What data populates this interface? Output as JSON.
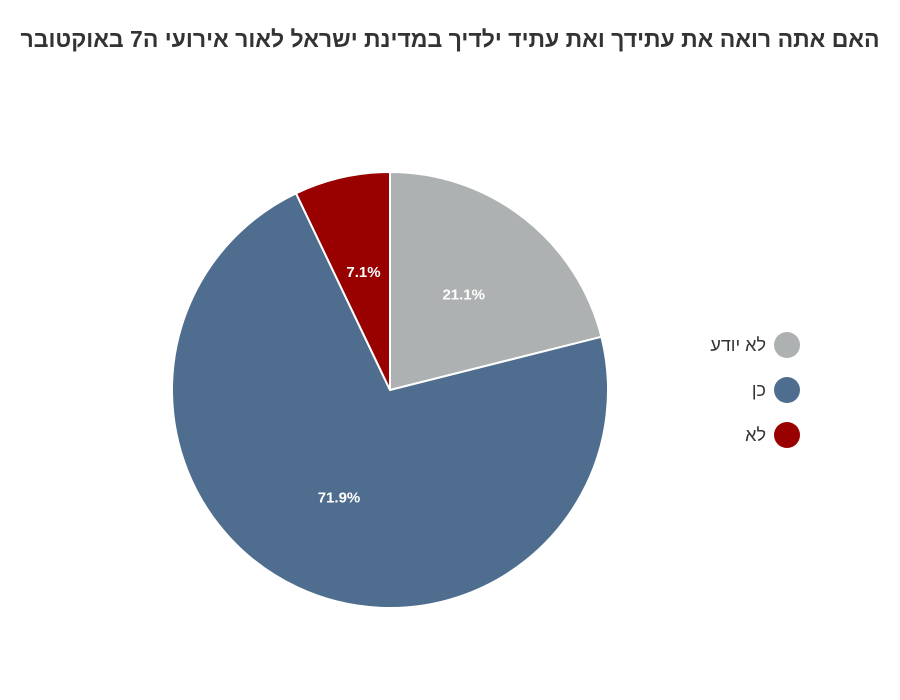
{
  "chart_data": {
    "type": "pie",
    "title": "האם אתה רואה את עתידך ואת עתיד ילדיך במדינת ישראל לאור אירועי ה7 באוקטובר",
    "slices": [
      {
        "label": "לא יודע",
        "value": 21.1,
        "value_label": "21.1%",
        "color": "#adb1b1"
      },
      {
        "label": "כן",
        "value": 71.9,
        "value_label": "71.9%",
        "color": "#4f6d8f"
      },
      {
        "label": "לא",
        "value": 7.1,
        "value_label": "7.1%",
        "color": "#990000"
      }
    ],
    "start_angle": "12 o'clock",
    "direction": "clockwise",
    "legend_position": "right"
  }
}
